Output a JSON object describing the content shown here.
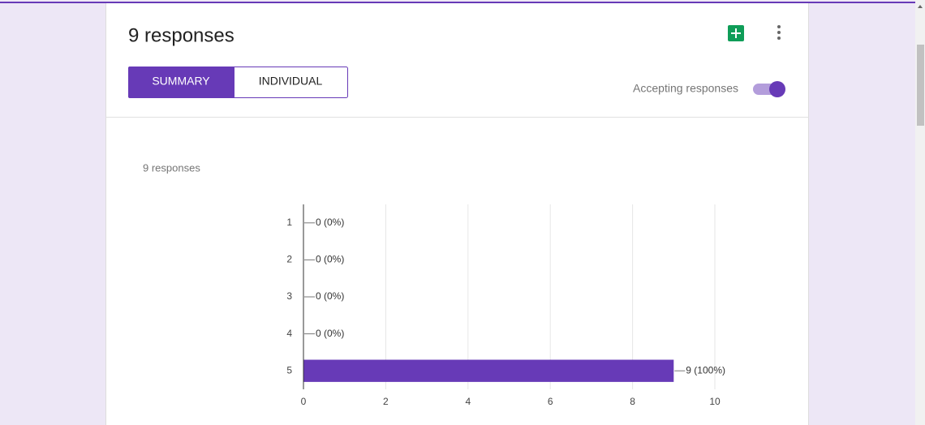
{
  "header": {
    "title": "9 responses",
    "tabs": [
      "SUMMARY",
      "INDIVIDUAL"
    ],
    "accepting": "Accepting responses"
  },
  "chart_data": {
    "type": "bar",
    "orientation": "horizontal",
    "subtitle": "9 responses",
    "categories": [
      "1",
      "2",
      "3",
      "4",
      "5"
    ],
    "values": [
      0,
      0,
      0,
      0,
      9
    ],
    "value_labels": [
      "0 (0%)",
      "0 (0%)",
      "0 (0%)",
      "0 (0%)",
      "9 (100%)"
    ],
    "color": "#673ab7",
    "xlim": [
      0,
      10
    ],
    "xticks": [
      0,
      2,
      4,
      6,
      8,
      10
    ],
    "grid": true
  }
}
